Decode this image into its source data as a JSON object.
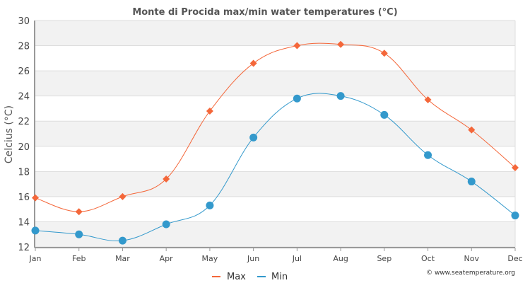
{
  "chart_data": {
    "type": "line",
    "title": "Monte di Procida max/min water temperatures (°C)",
    "xlabel": "",
    "ylabel": "Celcius (°C)",
    "categories": [
      "Jan",
      "Feb",
      "Mar",
      "Apr",
      "May",
      "Jun",
      "Jul",
      "Aug",
      "Sep",
      "Oct",
      "Nov",
      "Dec"
    ],
    "ylim": [
      12,
      30
    ],
    "yticks": [
      12,
      14,
      16,
      18,
      20,
      22,
      24,
      26,
      28,
      30
    ],
    "grid": true,
    "legend_position": "bottom-center",
    "series": [
      {
        "name": "Max",
        "color": "#f4673a",
        "marker": "diamond",
        "values": [
          15.9,
          14.8,
          16.0,
          17.4,
          22.8,
          26.6,
          28.0,
          28.1,
          27.4,
          23.7,
          21.3,
          18.3
        ]
      },
      {
        "name": "Min",
        "color": "#3399cc",
        "marker": "circle",
        "values": [
          13.3,
          13.0,
          12.5,
          13.8,
          15.3,
          20.7,
          23.8,
          24.0,
          22.5,
          19.3,
          17.2,
          14.5
        ]
      }
    ],
    "credit": "© www.seatemperature.org"
  }
}
